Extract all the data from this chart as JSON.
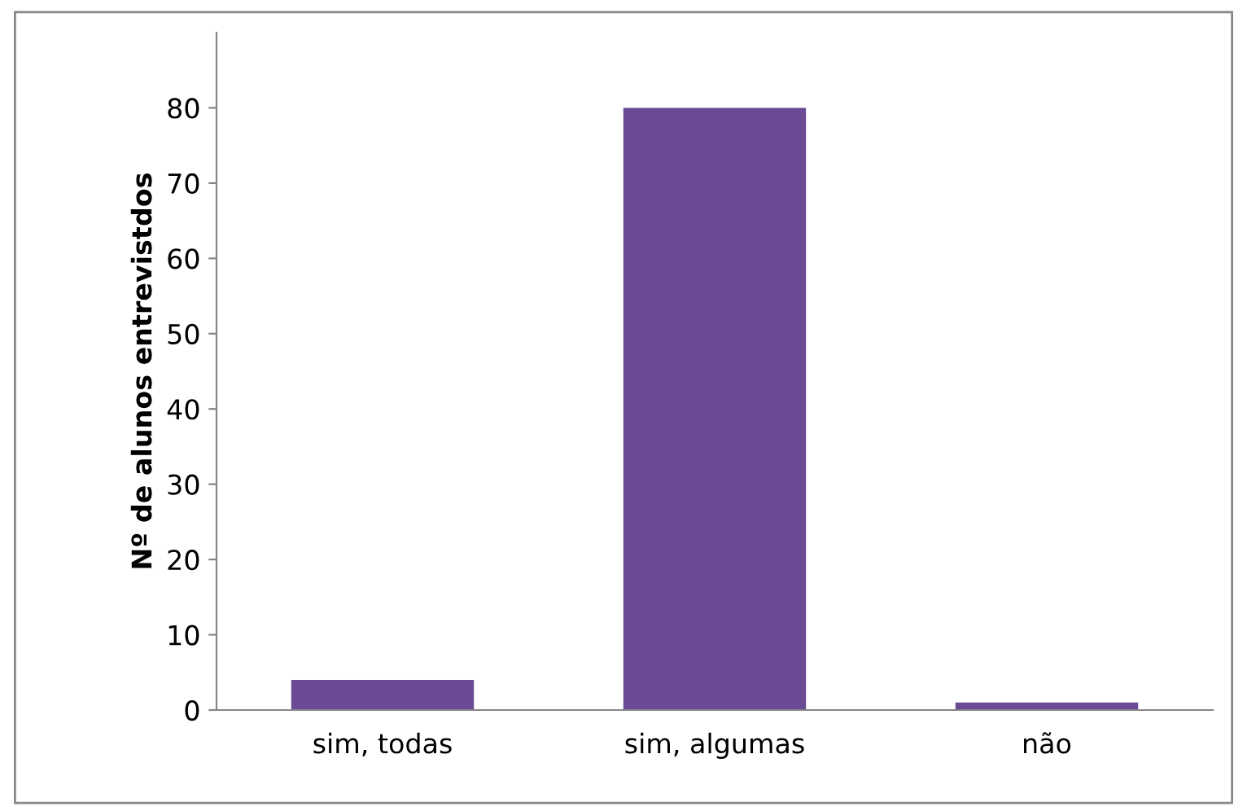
{
  "chart_data": {
    "type": "bar",
    "ylabel": "Nº de alunos entrevistdos",
    "categories": [
      "sim, todas",
      "sim, algumas",
      "não"
    ],
    "values": [
      4,
      80,
      1
    ],
    "color": "#6a4a94",
    "ylim": [
      0,
      90
    ],
    "yticks": [
      0,
      10,
      20,
      30,
      40,
      50,
      60,
      70,
      80
    ],
    "grid": false
  }
}
